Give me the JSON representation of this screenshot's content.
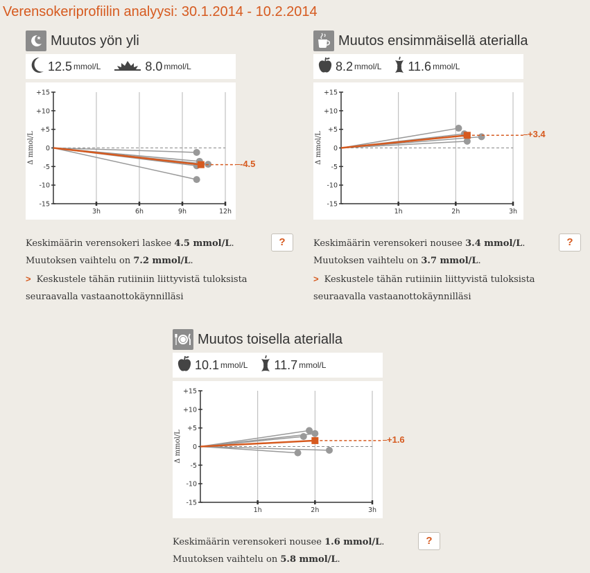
{
  "page": {
    "title": "Verensokeriprofiilin analyysi: 30.1.2014 - 10.2.2014"
  },
  "colors": {
    "accent": "#d65a1f",
    "series": "#999999",
    "axis": "#333333"
  },
  "panels": [
    {
      "id": "night",
      "title": "Muutos yön yli",
      "icon": "moon-star-icon",
      "readings": [
        {
          "icon": "moon-icon",
          "value": "12.5",
          "unit": "mmol/L"
        },
        {
          "icon": "sunrise-icon",
          "value": "8.0",
          "unit": "mmol/L"
        }
      ],
      "summary": {
        "pre": "Keskimäärin verensokeri laskee ",
        "value": "4.5 mmol/L",
        "post": "."
      },
      "variation": {
        "pre": "Muutoksen vaihtelu on ",
        "value": "7.2 mmol/L",
        "post": "."
      },
      "help_label": "?",
      "link": {
        "chevron": ">",
        "line1": "Keskustele tähän rutiiniin liittyvistä tuloksista",
        "line2": "seuraavalla vastaanottokäynnilläsi"
      }
    },
    {
      "id": "meal1",
      "title": "Muutos ensimmäisellä aterialla",
      "icon": "cup-icon",
      "readings": [
        {
          "icon": "apple-icon",
          "value": "8.2",
          "unit": "mmol/L"
        },
        {
          "icon": "apple-core-icon",
          "value": "11.6",
          "unit": "mmol/L"
        }
      ],
      "summary": {
        "pre": "Keskimäärin verensokeri nousee ",
        "value": "3.4 mmol/L",
        "post": "."
      },
      "variation": {
        "pre": "Muutoksen vaihtelu on ",
        "value": "3.7 mmol/L",
        "post": "."
      },
      "help_label": "?",
      "link": {
        "chevron": ">",
        "line1": "Keskustele tähän rutiiniin liittyvistä tuloksista",
        "line2": "seuraavalla vastaanottokäynnilläsi"
      }
    },
    {
      "id": "meal2",
      "title": "Muutos toisella aterialla",
      "icon": "plate-cutlery-icon",
      "readings": [
        {
          "icon": "apple-icon",
          "value": "10.1",
          "unit": "mmol/L"
        },
        {
          "icon": "apple-core-icon",
          "value": "11.7",
          "unit": "mmol/L"
        }
      ],
      "summary": {
        "pre": "Keskimäärin verensokeri nousee ",
        "value": "1.6 mmol/L",
        "post": "."
      },
      "variation": {
        "pre": "Muutoksen vaihtelu on ",
        "value": "5.8 mmol/L",
        "post": "."
      },
      "help_label": "?"
    }
  ],
  "chart_data": [
    {
      "type": "line",
      "ylabel": "Δ mmol/L",
      "ylim": [
        -15,
        15
      ],
      "yticks": [
        "+15",
        "+10",
        "+5",
        "0",
        "-5",
        "-10",
        "-15"
      ],
      "ytick_values": [
        15,
        10,
        5,
        0,
        -5,
        -10,
        -15
      ],
      "xlim": [
        0,
        12
      ],
      "xticks": [
        "3h",
        "6h",
        "9h",
        "12h"
      ],
      "xtick_values": [
        3,
        6,
        9,
        12
      ],
      "grid_x": true,
      "series": [
        {
          "x": [
            0,
            10
          ],
          "y": [
            0,
            -1.2
          ]
        },
        {
          "x": [
            0,
            10.2
          ],
          "y": [
            0,
            -3.6
          ]
        },
        {
          "x": [
            0,
            10.8
          ],
          "y": [
            0,
            -4.4
          ]
        },
        {
          "x": [
            0,
            10
          ],
          "y": [
            0,
            -4.8
          ]
        },
        {
          "x": [
            0,
            10
          ],
          "y": [
            0,
            -8.5
          ]
        }
      ],
      "average": {
        "x": [
          0,
          10.3
        ],
        "y": [
          0,
          -4.5
        ],
        "label": "-4.5"
      }
    },
    {
      "type": "line",
      "ylabel": "Δ mmol/L",
      "ylim": [
        -15,
        15
      ],
      "yticks": [
        "+15",
        "+10",
        "+5",
        "0",
        "-5",
        "-10",
        "-15"
      ],
      "ytick_values": [
        15,
        10,
        5,
        0,
        -5,
        -10,
        -15
      ],
      "xlim": [
        0,
        3
      ],
      "xticks": [
        "1h",
        "2h",
        "3h"
      ],
      "xtick_values": [
        1,
        2,
        3
      ],
      "grid_x": true,
      "series": [
        {
          "x": [
            0,
            2.05
          ],
          "y": [
            0,
            5.3
          ]
        },
        {
          "x": [
            0,
            2.15
          ],
          "y": [
            0,
            3.8
          ]
        },
        {
          "x": [
            0,
            2.45
          ],
          "y": [
            0,
            3.0
          ]
        },
        {
          "x": [
            0,
            2.2
          ],
          "y": [
            0,
            1.8
          ]
        }
      ],
      "average": {
        "x": [
          0,
          2.2
        ],
        "y": [
          0,
          3.4
        ],
        "label": "+3.4"
      }
    },
    {
      "type": "line",
      "ylabel": "Δ mmol/L",
      "ylim": [
        -15,
        15
      ],
      "yticks": [
        "+15",
        "+10",
        "+5",
        "0",
        "-5",
        "-10",
        "-15"
      ],
      "ytick_values": [
        15,
        10,
        5,
        0,
        -5,
        -10,
        -15
      ],
      "xlim": [
        0,
        3
      ],
      "xticks": [
        "1h",
        "2h",
        "3h"
      ],
      "xtick_values": [
        1,
        2,
        3
      ],
      "grid_x": true,
      "series": [
        {
          "x": [
            0,
            1.9
          ],
          "y": [
            0,
            4.3
          ]
        },
        {
          "x": [
            0,
            2.0
          ],
          "y": [
            0,
            3.5
          ]
        },
        {
          "x": [
            0,
            1.8
          ],
          "y": [
            0,
            2.7
          ]
        },
        {
          "x": [
            0,
            2.25
          ],
          "y": [
            0,
            -1.0
          ]
        },
        {
          "x": [
            0,
            1.7
          ],
          "y": [
            0,
            -1.7
          ]
        }
      ],
      "average": {
        "x": [
          0,
          2.0
        ],
        "y": [
          0,
          1.6
        ],
        "label": "+1.6"
      }
    }
  ]
}
